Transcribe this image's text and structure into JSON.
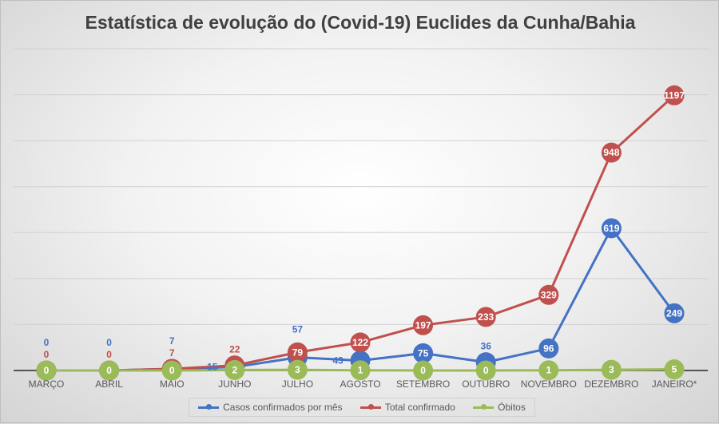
{
  "chart_data": {
    "type": "line",
    "title": "Estatística de evolução do (Covid-19)  Euclides da Cunha/Bahia",
    "categories": [
      "MARÇO",
      "ABRIL",
      "MAIO",
      "JUNHO",
      "JULHO",
      "AGOSTO",
      "SETEMBRO",
      "OUTUBRO",
      "NOVEMBRO",
      "DEZEMBRO",
      "JANEIRO*"
    ],
    "ylim": [
      0,
      1400
    ],
    "gridlines": true,
    "y_axis_labels_shown": false,
    "legend_position": "bottom",
    "series": [
      {
        "name": "Casos confirmados por mês",
        "color": "#4472c4",
        "values": [
          0,
          0,
          7,
          15,
          57,
          43,
          75,
          36,
          96,
          619,
          249
        ]
      },
      {
        "name": "Total confirmado",
        "color": "#c0504d",
        "values": [
          0,
          0,
          7,
          22,
          79,
          122,
          197,
          233,
          329,
          948,
          1197
        ]
      },
      {
        "name": "Óbitos",
        "color": "#9bbb59",
        "values": [
          0,
          0,
          0,
          2,
          3,
          1,
          0,
          0,
          1,
          3,
          5
        ]
      }
    ]
  }
}
